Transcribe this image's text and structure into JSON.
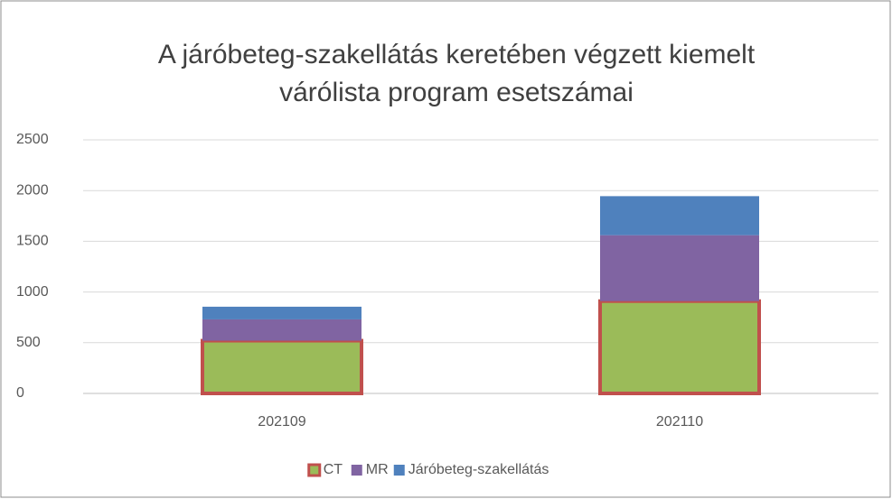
{
  "chart_data": {
    "type": "stacked_bar",
    "title": [
      "A járóbeteg-szakellátás keretében végzett kiemelt",
      "várólista program esetszámai"
    ],
    "categories": [
      "202109",
      "202110"
    ],
    "series": [
      {
        "name": "CT",
        "color": "#9bbb59",
        "border": "#c0504d",
        "values": [
          520,
          910
        ]
      },
      {
        "name": "MR",
        "color": "#8064a2",
        "values": [
          210,
          650
        ]
      },
      {
        "name": "Járóbeteg-szakellátás",
        "color": "#4f81bd",
        "values": [
          125,
          385
        ]
      }
    ],
    "ylim": [
      0,
      2500
    ],
    "yticks": [
      0,
      500,
      1000,
      1500,
      2000,
      2500
    ],
    "grid": true,
    "legend": "bottom"
  }
}
